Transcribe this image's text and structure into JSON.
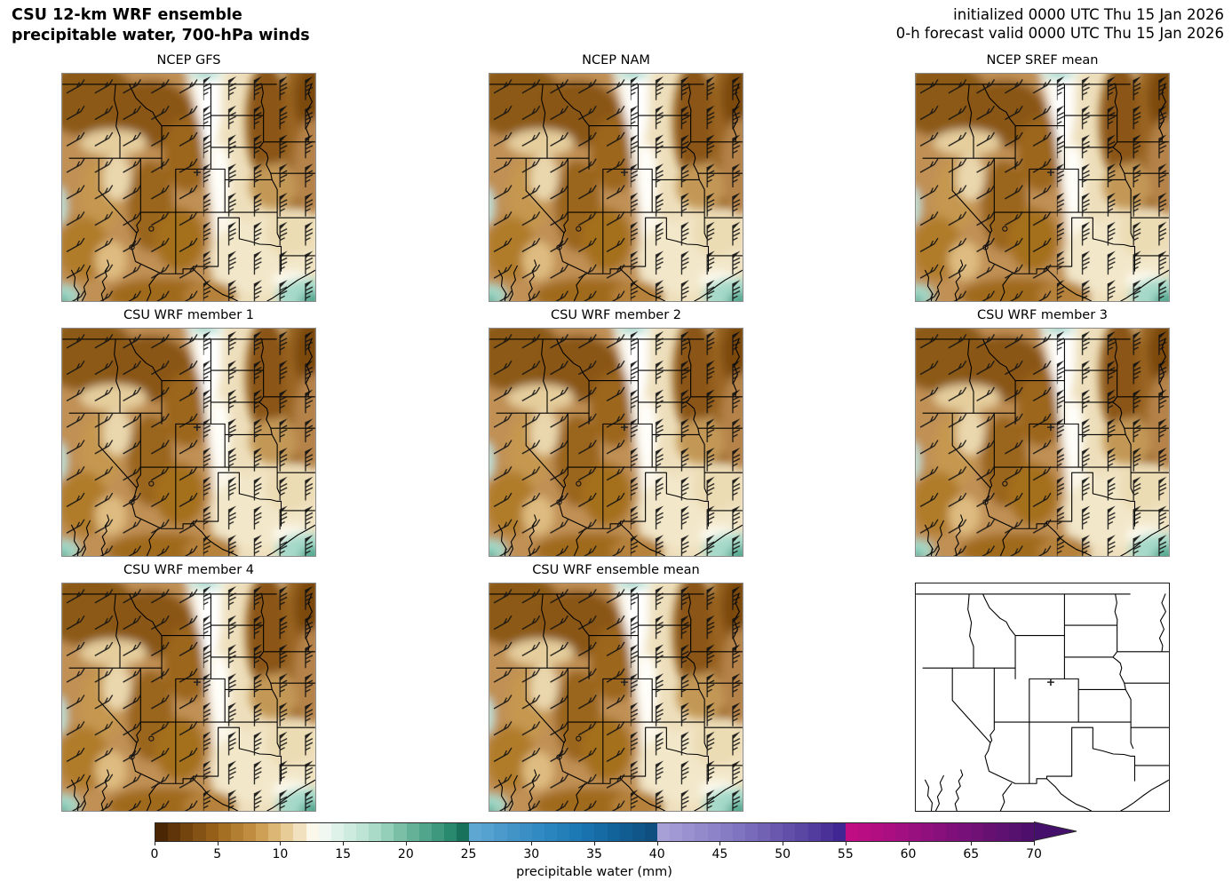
{
  "header": {
    "title_line1": "CSU 12-km WRF ensemble",
    "title_line2": "precipitable water, 700-hPa winds",
    "init_line": "initialized 0000 UTC Thu 15 Jan 2026",
    "valid_line": "0-h forecast valid 0000 UTC Thu 15 Jan 2026"
  },
  "panels": [
    {
      "label": "NCEP GFS",
      "type": "filled"
    },
    {
      "label": "NCEP NAM",
      "type": "filled"
    },
    {
      "label": "NCEP SREF mean",
      "type": "filled"
    },
    {
      "label": "CSU WRF member 1",
      "type": "filled"
    },
    {
      "label": "CSU WRF member 2",
      "type": "filled"
    },
    {
      "label": "CSU WRF member 3",
      "type": "filled"
    },
    {
      "label": "CSU WRF member 4",
      "type": "filled"
    },
    {
      "label": "CSU WRF ensemble mean",
      "type": "filled"
    },
    {
      "label": "",
      "type": "outline"
    }
  ],
  "map_overlays": {
    "station_marker": "+",
    "wind_symbol": "wind-barb",
    "boundary_color": "#000000"
  },
  "colorbar": {
    "label": "precipitable water (mm)",
    "ticks": [
      0,
      5,
      10,
      15,
      20,
      25,
      30,
      35,
      40,
      45,
      50,
      55,
      60,
      65,
      70
    ],
    "vmin": 0,
    "vmax": 70,
    "extend": "max",
    "over": "#45106b",
    "stops": [
      {
        "v": 0,
        "c": "#3f1e03"
      },
      {
        "v": 2,
        "c": "#6b3d0b"
      },
      {
        "v": 5,
        "c": "#9d661c"
      },
      {
        "v": 8,
        "c": "#c79547"
      },
      {
        "v": 10,
        "c": "#e2c183"
      },
      {
        "v": 12,
        "c": "#f7ecd2"
      },
      {
        "v": 12.8,
        "c": "#fefdf8"
      },
      {
        "v": 14,
        "c": "#e7f5ee"
      },
      {
        "v": 16,
        "c": "#c6e8da"
      },
      {
        "v": 18,
        "c": "#a0d7c2"
      },
      {
        "v": 20,
        "c": "#6db79d"
      },
      {
        "v": 22,
        "c": "#479f85"
      },
      {
        "v": 24,
        "c": "#1f8168"
      },
      {
        "v": 25,
        "c": "#11604d"
      },
      {
        "v": 25,
        "c": "#63aad5"
      },
      {
        "v": 28,
        "c": "#4697c9"
      },
      {
        "v": 31,
        "c": "#2d87bf"
      },
      {
        "v": 34,
        "c": "#1a76b1"
      },
      {
        "v": 37,
        "c": "#125f96"
      },
      {
        "v": 40,
        "c": "#0d4c7a"
      },
      {
        "v": 40,
        "c": "#aaa4d8"
      },
      {
        "v": 43,
        "c": "#968dce"
      },
      {
        "v": 46,
        "c": "#8378c2"
      },
      {
        "v": 49,
        "c": "#6d5db1"
      },
      {
        "v": 52,
        "c": "#5641a0"
      },
      {
        "v": 55,
        "c": "#3c2090"
      },
      {
        "v": 55,
        "c": "#c30d84"
      },
      {
        "v": 58,
        "c": "#ae0e81"
      },
      {
        "v": 61,
        "c": "#94107e"
      },
      {
        "v": 64,
        "c": "#7b1079"
      },
      {
        "v": 67,
        "c": "#621171"
      },
      {
        "v": 70,
        "c": "#4a0e6b"
      }
    ]
  }
}
